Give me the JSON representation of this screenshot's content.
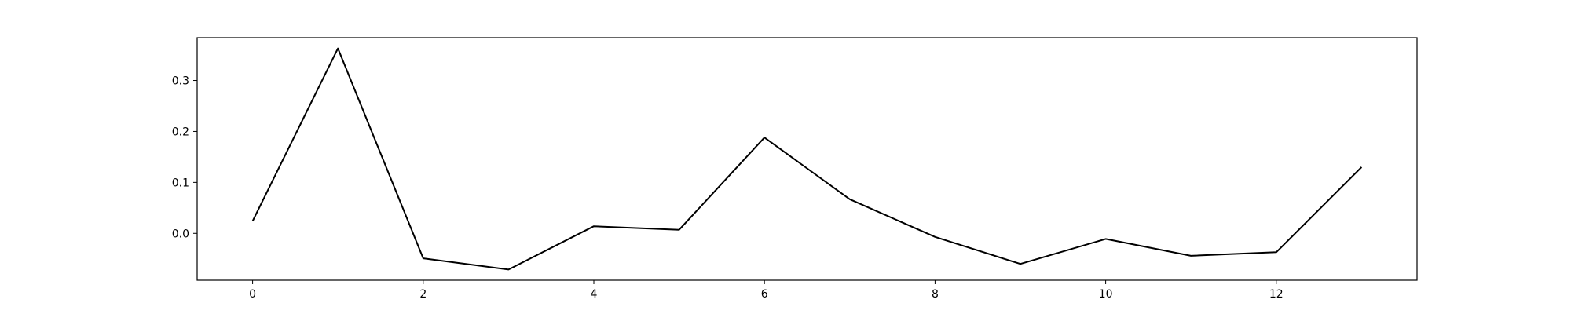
{
  "chart_data": {
    "type": "line",
    "title": "",
    "xlabel": "",
    "ylabel": "",
    "x": [
      0,
      1,
      2,
      3,
      4,
      5,
      6,
      7,
      8,
      9,
      10,
      11,
      12,
      13
    ],
    "series": [
      {
        "values": [
          0.024,
          0.363,
          -0.049,
          -0.071,
          0.014,
          0.007,
          0.188,
          0.067,
          -0.007,
          -0.06,
          -0.011,
          -0.044,
          -0.037,
          0.13
        ],
        "color": "#000000"
      }
    ],
    "xlim": [
      -0.65,
      13.65
    ],
    "ylim": [
      -0.092,
      0.384
    ],
    "xticks": [
      0,
      2,
      4,
      6,
      8,
      10,
      12
    ],
    "xtick_labels": [
      "0",
      "2",
      "4",
      "6",
      "8",
      "10",
      "12"
    ],
    "yticks": [
      0.0,
      0.1,
      0.2,
      0.3
    ],
    "ytick_labels": [
      "0.0",
      "0.1",
      "0.2",
      "0.3"
    ],
    "grid": false,
    "legend": "none"
  }
}
